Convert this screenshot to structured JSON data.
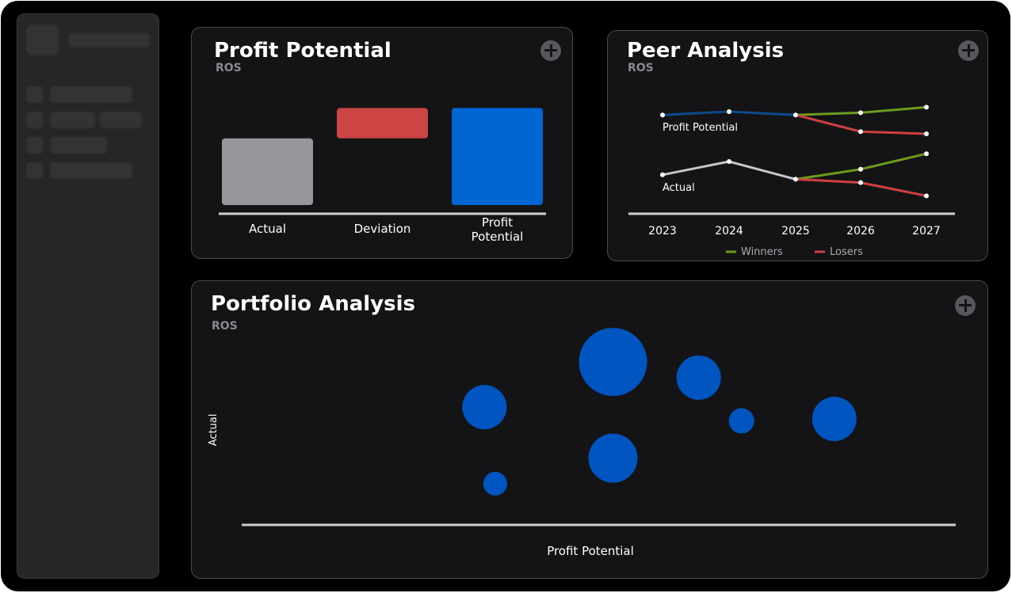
{
  "colors": {
    "actual": "#97969a",
    "deviation": "#cc4444",
    "profit": "#0066d4",
    "bubble": "#0055c0",
    "winners": "#6d9b1e",
    "losers": "#cf4040",
    "peer_base_top": "#0d4a8a",
    "peer_base_bottom": "#c7c7c9",
    "axis": "#cfcfd2"
  },
  "profit_potential": {
    "title": "Profit Potential",
    "subtitle": "ROS",
    "add_icon": "plus-circle-icon",
    "chart_data": {
      "type": "waterfall",
      "categories": [
        "Actual",
        "Deviation",
        "Profit Potential"
      ],
      "values": [
        90,
        41,
        131
      ],
      "ylim": [
        0,
        140
      ]
    }
  },
  "peer_analysis": {
    "title": "Peer Analysis",
    "subtitle": "ROS",
    "add_icon": "plus-circle-icon",
    "chart_data": {
      "type": "line",
      "x": [
        "2023",
        "2024",
        "2025",
        "2026",
        "2027"
      ],
      "ylim": [
        0,
        100
      ],
      "groups": [
        {
          "name": "Profit Potential",
          "base": [
            87,
            90,
            87
          ],
          "winners": [
            87,
            89,
            94
          ],
          "losers": [
            87,
            72,
            70
          ]
        },
        {
          "name": "Actual",
          "base": [
            33,
            45,
            29
          ],
          "winners": [
            29,
            38,
            52
          ],
          "losers": [
            29,
            26,
            14
          ]
        }
      ],
      "legend": [
        "Winners",
        "Losers"
      ]
    }
  },
  "portfolio_analysis": {
    "title": "Portfolio Analysis",
    "subtitle": "ROS",
    "add_icon": "plus-circle-icon",
    "chart_data": {
      "type": "scatter",
      "xlabel": "Profit Potential",
      "ylabel": "Actual",
      "xlim": [
        0,
        100
      ],
      "ylim": [
        0,
        100
      ],
      "points": [
        {
          "x": 34,
          "y": 60,
          "r": 28
        },
        {
          "x": 35.5,
          "y": 21,
          "r": 15
        },
        {
          "x": 52,
          "y": 83,
          "r": 43
        },
        {
          "x": 52,
          "y": 34,
          "r": 31
        },
        {
          "x": 64,
          "y": 75,
          "r": 28
        },
        {
          "x": 70,
          "y": 53,
          "r": 16
        },
        {
          "x": 83,
          "y": 54,
          "r": 28
        }
      ]
    }
  }
}
